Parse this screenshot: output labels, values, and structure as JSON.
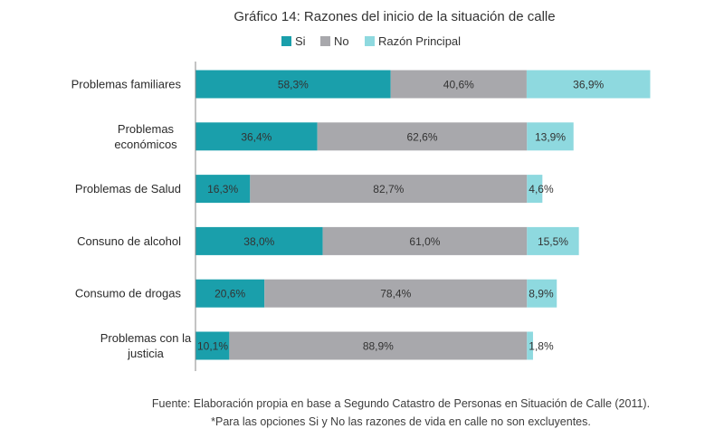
{
  "chart_data": {
    "type": "bar",
    "orientation": "horizontal",
    "stacked": true,
    "title": "Gráfico 14: Razones del inicio de la situación de calle",
    "legend_position": "top",
    "categories": [
      [
        "Problemas familiares"
      ],
      [
        "Problemas",
        "económicos"
      ],
      [
        "Problemas de Salud"
      ],
      [
        "Consuno de alcohol"
      ],
      [
        "Consumo de drogas"
      ],
      [
        "Problemas con la",
        "justicia"
      ]
    ],
    "series": [
      {
        "name": "Si",
        "color": "#1a9fab",
        "values": [
          58.3,
          36.4,
          16.3,
          38.0,
          20.6,
          10.1
        ],
        "labels": [
          "58,3%",
          "36,4%",
          "16,3%",
          "38,0%",
          "20,6%",
          "10,1%"
        ]
      },
      {
        "name": "No",
        "color": "#a8a8ac",
        "values": [
          40.6,
          62.6,
          82.7,
          61.0,
          78.4,
          88.9
        ],
        "labels": [
          "40,6%",
          "62,6%",
          "82,7%",
          "61,0%",
          "78,4%",
          "88,9%"
        ]
      },
      {
        "name": "Razón Principal",
        "color": "#8ed9df",
        "values": [
          36.9,
          13.9,
          4.6,
          15.5,
          8.9,
          1.8
        ],
        "labels": [
          "36,9%",
          "13,9%",
          "4,6%",
          "15,5%",
          "8,9%",
          "1,8%"
        ]
      }
    ],
    "grid": false
  },
  "footer": {
    "source": "Fuente: Elaboración propia en base a Segundo Catastro de Personas en Situación de Calle (2011).",
    "note": "*Para las opciones Si y No las razones de vida en calle no son excluyentes."
  }
}
